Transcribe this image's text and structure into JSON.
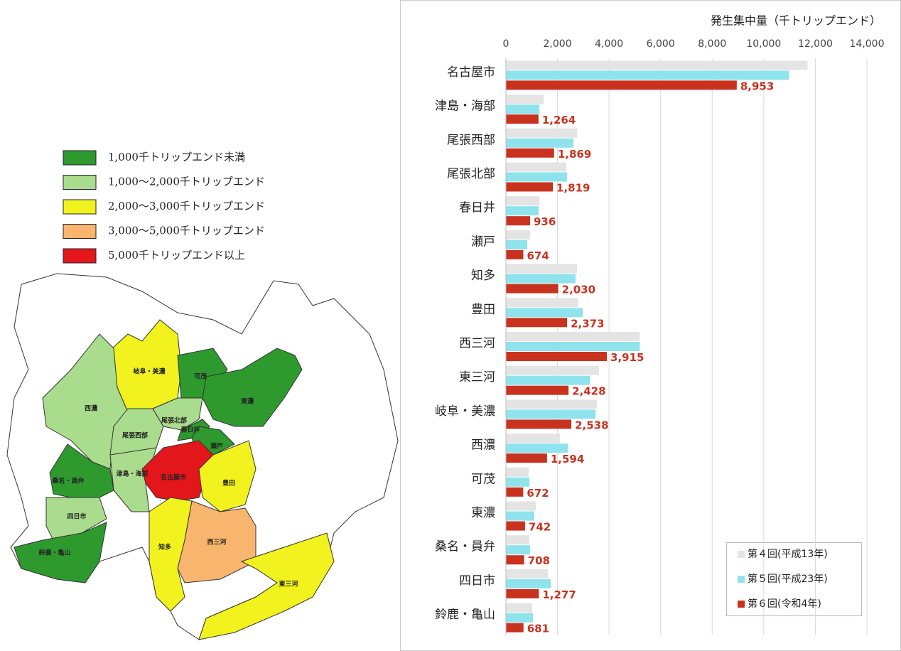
{
  "chart_data": {
    "type": "bar",
    "orientation": "horizontal",
    "x_label": "発生集中量（千トリップエンド）",
    "categories": [
      "名古屋市",
      "津島・海部",
      "尾張西部",
      "尾張北部",
      "春日井",
      "瀬戸",
      "知多",
      "豊田",
      "西三河",
      "東三河",
      "岐阜・美濃",
      "西濃",
      "可茂",
      "東濃",
      "桑名・員弁",
      "四日市",
      "鈴鹿・亀山"
    ],
    "series": [
      {
        "name": "第４回(平成13年)",
        "color": "#e4e4e4",
        "values": [
          11700,
          1460,
          2760,
          2345,
          1300,
          940,
          2760,
          2810,
          5190,
          3610,
          3530,
          2100,
          880,
          1160,
          910,
          1630,
          1020
        ]
      },
      {
        "name": "第５回(平成23年)",
        "color": "#8ee3ec",
        "values": [
          10980,
          1300,
          2620,
          2370,
          1270,
          830,
          2700,
          2980,
          5190,
          3260,
          3480,
          2400,
          910,
          1100,
          940,
          1740,
          1050
        ]
      },
      {
        "name": "第６回(令和4年)",
        "color": "#c9321f",
        "values": [
          8953,
          1264,
          1869,
          1819,
          936,
          674,
          2030,
          2373,
          3915,
          2428,
          2538,
          1594,
          672,
          742,
          708,
          1277,
          681
        ],
        "value_labels": [
          "8,953",
          "1,264",
          "1,869",
          "1,819",
          "936",
          "674",
          "2,030",
          "2,373",
          "3,915",
          "2,428",
          "2,538",
          "1,594",
          "672",
          "742",
          "708",
          "1,277",
          "681"
        ]
      }
    ],
    "xlim": [
      0,
      14000
    ],
    "xticks": [
      0,
      {
        "value": 2000,
        "label": "2,000"
      },
      {
        "value": 4000,
        "label": "4,000"
      },
      {
        "value": 6000,
        "label": "6,000"
      },
      {
        "value": 8000,
        "label": "8,000"
      },
      {
        "value": 10000,
        "label": "10,000"
      },
      {
        "value": 12000,
        "label": "12,000"
      },
      {
        "value": 14000,
        "label": "14,000"
      }
    ],
    "grid": true,
    "legend": "lower right"
  },
  "map": {
    "legend": [
      {
        "label": "1,000千トリップエンド未満",
        "color": "#2e9a2e"
      },
      {
        "label": "1,000～2,000千トリップエンド",
        "color": "#a9dc8c"
      },
      {
        "label": "2,000～3,000千トリップエンド",
        "color": "#f2f21e"
      },
      {
        "label": "3,000～5,000千トリップエンド",
        "color": "#f8b56d"
      },
      {
        "label": "5,000千トリップエンド以上",
        "color": "#e3161b"
      }
    ],
    "labels": [
      "岐阜・美濃",
      "可茂",
      "東濃",
      "西濃",
      "尾張北部",
      "尾張西部",
      "春日井",
      "瀬戸",
      "津島・海部",
      "名古屋市",
      "桑名・員弁",
      "豊田",
      "四日市",
      "知多",
      "西三河",
      "東三河",
      "鈴鹿・亀山"
    ]
  }
}
